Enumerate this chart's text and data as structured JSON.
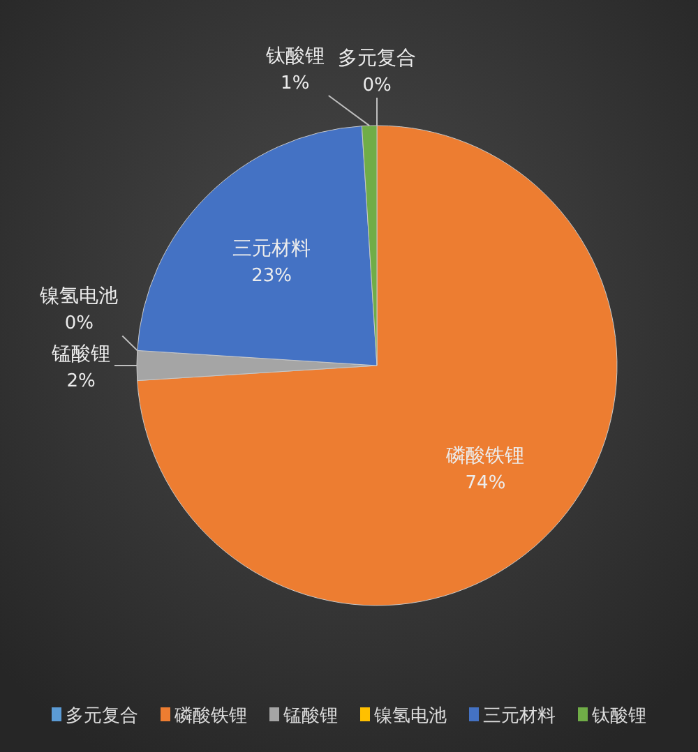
{
  "chart_data": {
    "type": "pie",
    "categories": [
      "多元复合",
      "磷酸铁锂",
      "锰酸锂",
      "镍氢电池",
      "三元材料",
      "钛酸锂"
    ],
    "values": [
      0,
      74,
      2,
      0,
      23,
      1
    ],
    "value_labels": [
      "0%",
      "74%",
      "2%",
      "0%",
      "23%",
      "1%"
    ],
    "colors": [
      "#5b9bd5",
      "#ed7d31",
      "#a5a5a5",
      "#ffc000",
      "#4472c4",
      "#70ad47"
    ],
    "legend": "bottom"
  }
}
